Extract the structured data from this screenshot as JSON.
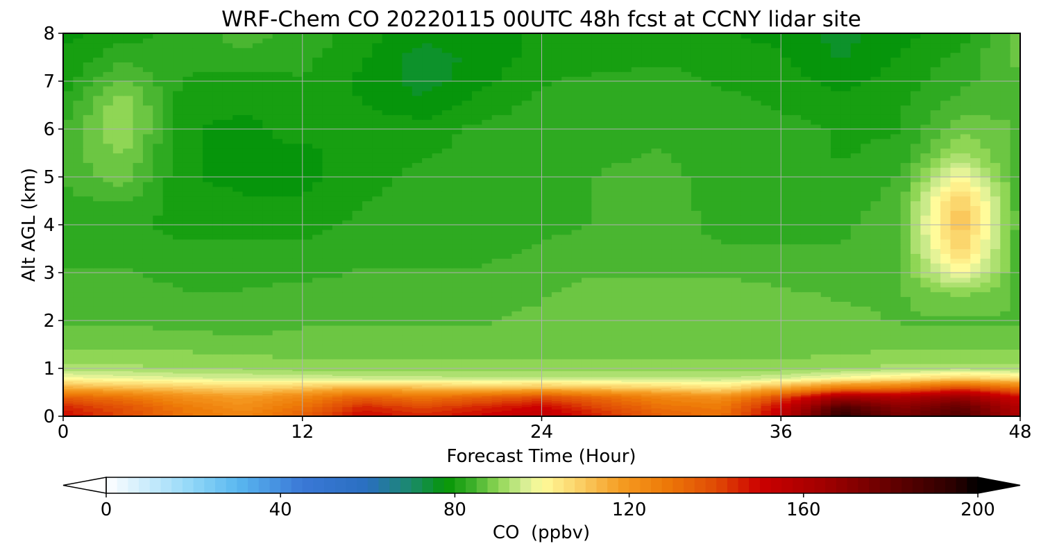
{
  "chart_data": {
    "type": "heatmap",
    "title": "WRF-Chem CO  20220115 00UTC 48h fcst at CCNY lidar site",
    "xlabel": "Forecast Time (Hour)",
    "ylabel": "Alt AGL (km)",
    "xlim": [
      0,
      48
    ],
    "ylim": [
      0,
      8
    ],
    "x_ticks": [
      "0",
      "12",
      "24",
      "36",
      "48"
    ],
    "y_ticks": [
      "0",
      "1",
      "2",
      "3",
      "4",
      "5",
      "6",
      "7",
      "8"
    ],
    "grid": true,
    "colorbar": {
      "label": "CO  (ppbv)",
      "min": 0,
      "max": 200,
      "ticks": [
        "0",
        "40",
        "80",
        "120",
        "160",
        "200"
      ],
      "extend": "both",
      "orientation": "horizontal",
      "placement": "bottom"
    },
    "x": [
      0,
      3,
      6,
      9,
      12,
      15,
      18,
      21,
      24,
      27,
      30,
      33,
      36,
      39,
      42,
      45,
      48
    ],
    "y": [
      0,
      0.2,
      0.4,
      0.6,
      0.8,
      1,
      1.5,
      2,
      2.5,
      3,
      3.5,
      4,
      4.5,
      5,
      5.5,
      6,
      6.5,
      7,
      7.5,
      8
    ],
    "z": [
      [
        150,
        140,
        130,
        125,
        135,
        150,
        145,
        150,
        155,
        145,
        135,
        130,
        155,
        195,
        175,
        185,
        160
      ],
      [
        145,
        138,
        128,
        122,
        130,
        145,
        140,
        145,
        150,
        140,
        130,
        128,
        150,
        185,
        170,
        180,
        158
      ],
      [
        135,
        130,
        122,
        118,
        125,
        135,
        130,
        135,
        140,
        132,
        125,
        122,
        140,
        165,
        160,
        168,
        150
      ],
      [
        115,
        112,
        110,
        108,
        110,
        115,
        112,
        110,
        112,
        110,
        108,
        105,
        115,
        128,
        130,
        140,
        130
      ],
      [
        100,
        98,
        97,
        96,
        96,
        95,
        95,
        94,
        94,
        94,
        94,
        94,
        96,
        100,
        104,
        108,
        105
      ],
      [
        92,
        92,
        91,
        91,
        90,
        90,
        90,
        90,
        90,
        90,
        90,
        90,
        90,
        91,
        92,
        93,
        92
      ],
      [
        88,
        88,
        88,
        87,
        87,
        87,
        87,
        87,
        87,
        87,
        87,
        87,
        87,
        87,
        88,
        87,
        88
      ],
      [
        86,
        86,
        85,
        85,
        86,
        86,
        86,
        86,
        87,
        88,
        88,
        88,
        88,
        87,
        86,
        86,
        86
      ],
      [
        85,
        85,
        84,
        84,
        85,
        85,
        85,
        85,
        86,
        88,
        88,
        88,
        87,
        86,
        86,
        88,
        86
      ],
      [
        84,
        84,
        83,
        83,
        83,
        84,
        84,
        84,
        85,
        86,
        86,
        86,
        85,
        85,
        86,
        100,
        85
      ],
      [
        83,
        83,
        82,
        82,
        82,
        83,
        83,
        83,
        84,
        85,
        85,
        84,
        84,
        84,
        86,
        108,
        84
      ],
      [
        82,
        82,
        80,
        80,
        80,
        82,
        83,
        83,
        83,
        84,
        85,
        83,
        83,
        83,
        86,
        112,
        84
      ],
      [
        83,
        84,
        80,
        79,
        79,
        81,
        83,
        83,
        82,
        84,
        86,
        82,
        82,
        82,
        85,
        110,
        84
      ],
      [
        84,
        88,
        79,
        78,
        78,
        80,
        82,
        82,
        82,
        84,
        85,
        82,
        82,
        82,
        84,
        100,
        84
      ],
      [
        85,
        89,
        79,
        78,
        78,
        80,
        81,
        82,
        82,
        83,
        84,
        82,
        82,
        81,
        82,
        92,
        85
      ],
      [
        84,
        92,
        79,
        78,
        80,
        80,
        80,
        82,
        82,
        83,
        83,
        82,
        82,
        81,
        81,
        88,
        86
      ],
      [
        82,
        91,
        80,
        79,
        80,
        79,
        77,
        80,
        82,
        83,
        83,
        82,
        81,
        80,
        81,
        85,
        86
      ],
      [
        80,
        87,
        81,
        80,
        81,
        78,
        75,
        78,
        81,
        82,
        82,
        81,
        80,
        78,
        80,
        83,
        86
      ],
      [
        79,
        83,
        82,
        83,
        82,
        79,
        75,
        77,
        80,
        80,
        81,
        80,
        79,
        76,
        79,
        82,
        87
      ],
      [
        78,
        80,
        82,
        85,
        83,
        80,
        77,
        78,
        79,
        79,
        80,
        79,
        78,
        75,
        78,
        80,
        88
      ]
    ]
  }
}
